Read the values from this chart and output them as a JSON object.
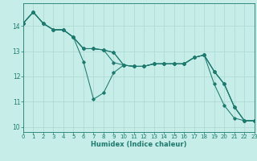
{
  "xlabel": "Humidex (Indice chaleur)",
  "background_color": "#c6ede8",
  "grid_color": "#aad8d0",
  "line_color": "#1e7a6e",
  "series": [
    [
      14.1,
      14.55,
      14.1,
      13.85,
      13.85,
      13.55,
      12.58,
      11.1,
      11.35,
      12.15,
      12.45,
      12.4,
      12.4,
      12.5,
      12.5,
      12.5,
      12.5,
      12.75,
      12.85,
      12.2,
      11.7,
      10.8,
      10.25,
      10.25
    ],
    [
      14.1,
      14.55,
      14.1,
      13.85,
      13.85,
      13.55,
      13.1,
      13.1,
      13.05,
      12.95,
      12.45,
      12.4,
      12.4,
      12.5,
      12.5,
      12.5,
      12.5,
      12.75,
      12.85,
      12.2,
      11.7,
      10.8,
      10.25,
      10.25
    ],
    [
      14.1,
      14.55,
      14.1,
      13.85,
      13.85,
      13.55,
      13.1,
      13.1,
      13.05,
      12.95,
      12.45,
      12.4,
      12.4,
      12.5,
      12.5,
      12.5,
      12.5,
      12.75,
      12.85,
      12.2,
      11.7,
      10.8,
      10.25,
      10.25
    ],
    [
      14.1,
      14.55,
      14.1,
      13.85,
      13.85,
      13.55,
      13.1,
      13.1,
      13.05,
      12.55,
      12.45,
      12.4,
      12.4,
      12.5,
      12.5,
      12.5,
      12.5,
      12.75,
      12.85,
      11.7,
      10.85,
      10.35,
      10.25,
      10.25
    ]
  ],
  "x": [
    0,
    1,
    2,
    3,
    4,
    5,
    6,
    7,
    8,
    9,
    10,
    11,
    12,
    13,
    14,
    15,
    16,
    17,
    18,
    19,
    20,
    21,
    22,
    23
  ],
  "xlim": [
    0,
    23
  ],
  "ylim": [
    9.8,
    14.9
  ],
  "yticks": [
    10,
    11,
    12,
    13,
    14
  ],
  "xticks": [
    0,
    1,
    2,
    3,
    4,
    5,
    6,
    7,
    8,
    9,
    10,
    11,
    12,
    13,
    14,
    15,
    16,
    17,
    18,
    19,
    20,
    21,
    22,
    23
  ],
  "marker": "D",
  "markersize": 1.8,
  "linewidth": 0.75,
  "tick_fontsize": 5.0,
  "xlabel_fontsize": 6.0
}
